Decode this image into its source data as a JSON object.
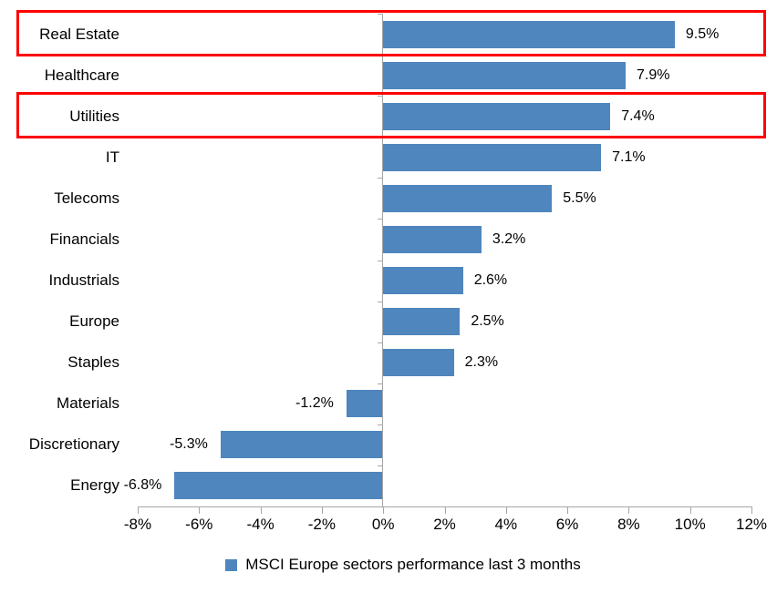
{
  "chart_data": {
    "type": "bar",
    "orientation": "horizontal",
    "categories": [
      "Real Estate",
      "Healthcare",
      "Utilities",
      "IT",
      "Telecoms",
      "Financials",
      "Industrials",
      "Europe",
      "Staples",
      "Materials",
      "Discretionary",
      "Energy"
    ],
    "values": [
      9.5,
      7.9,
      7.4,
      7.1,
      5.5,
      3.2,
      2.6,
      2.5,
      2.3,
      -1.2,
      -5.3,
      -6.8
    ],
    "value_labels": [
      "9.5%",
      "7.9%",
      "7.4%",
      "7.1%",
      "5.5%",
      "3.2%",
      "2.6%",
      "2.5%",
      "2.3%",
      "-1.2%",
      "-5.3%",
      "-6.8%"
    ],
    "x_axis": {
      "min": -8,
      "max": 12,
      "tick_step": 2,
      "ticks": [
        "-8%",
        "-6%",
        "-4%",
        "-2%",
        "0%",
        "2%",
        "4%",
        "6%",
        "8%",
        "10%",
        "12%"
      ]
    },
    "legend": {
      "label": "MSCI Europe sectors performance last 3 months",
      "marker_color": "#4e86bd",
      "position": "bottom"
    },
    "bar_color": "#4e86bd",
    "axis_color": "#a6a6a6",
    "highlighted_categories": [
      "Real Estate",
      "Utilities"
    ],
    "highlight_color": "#ff0000",
    "grid": false,
    "title": ""
  }
}
